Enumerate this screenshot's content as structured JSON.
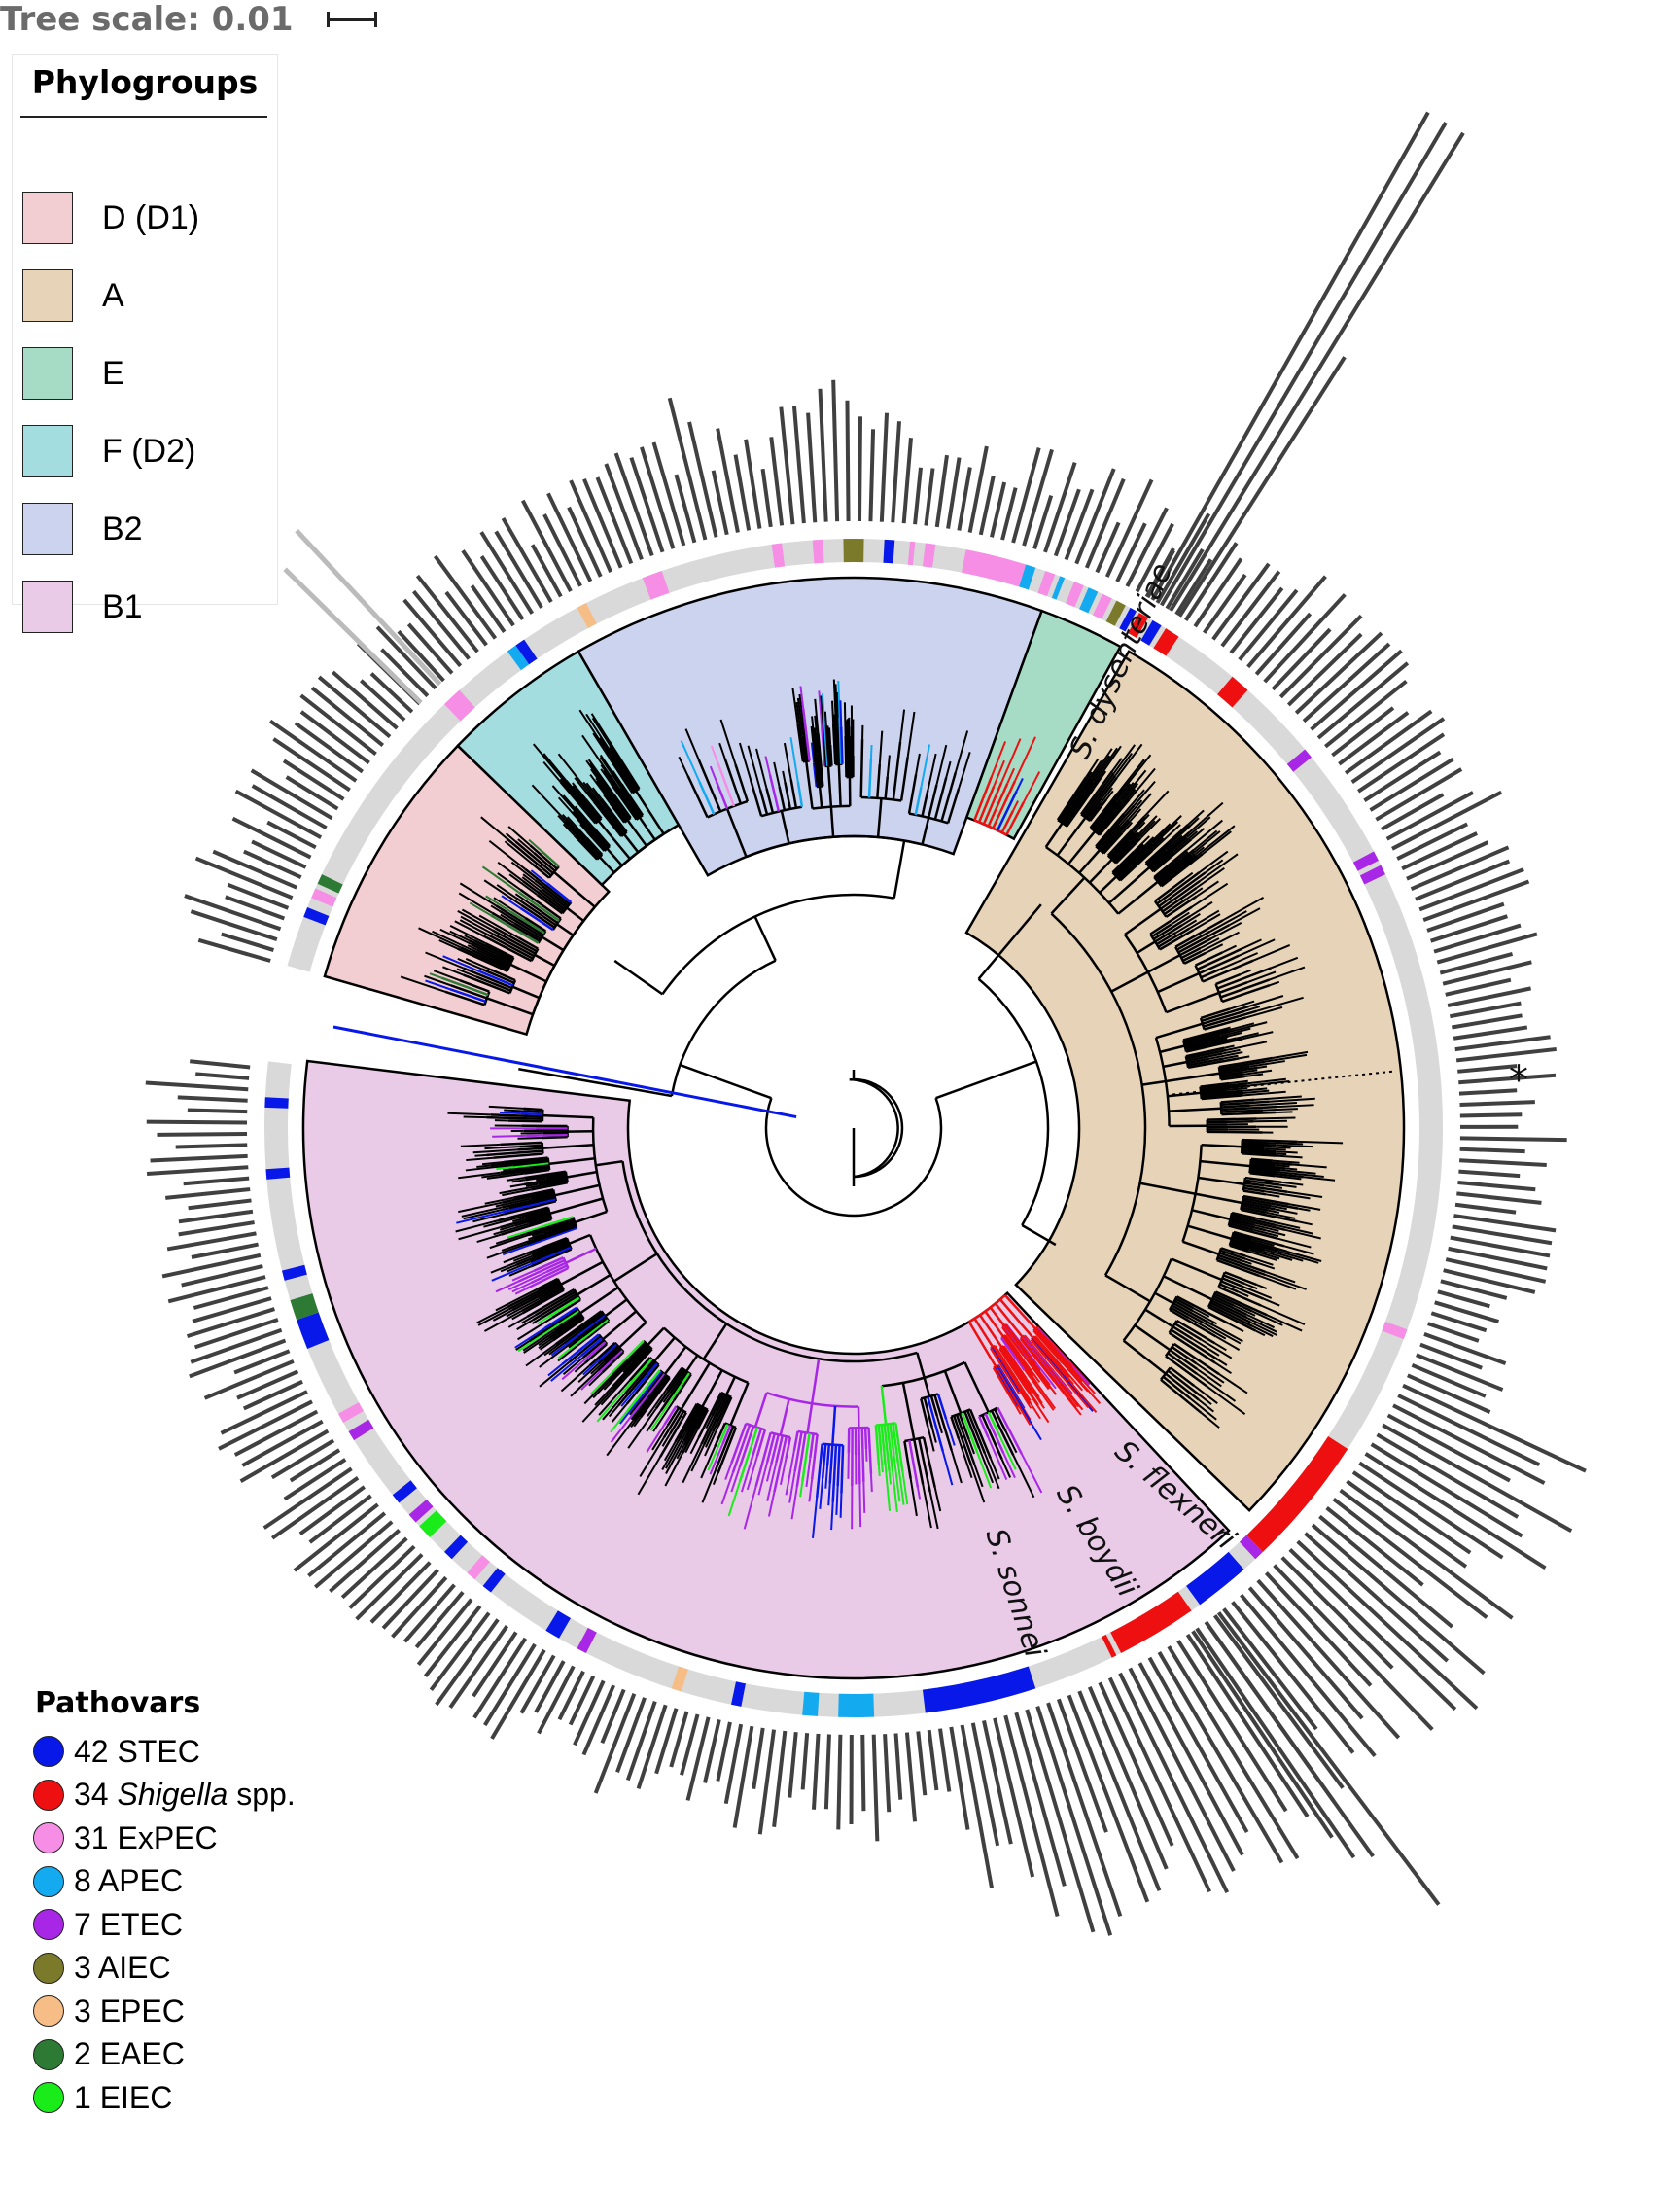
{
  "tree_scale": {
    "label": "Tree scale: 0.01"
  },
  "phylogroups_legend": {
    "title": "Phylogroups",
    "items": [
      {
        "label": "D (D1)",
        "color": "#f2cdd2"
      },
      {
        "label": "A",
        "color": "#e7d4b8"
      },
      {
        "label": "E",
        "color": "#a6dcc6"
      },
      {
        "label": "F (D2)",
        "color": "#a4dde0"
      },
      {
        "label": "B2",
        "color": "#ccd3ee"
      },
      {
        "label": "B1",
        "color": "#e9cbe8"
      }
    ]
  },
  "pathovars_legend": {
    "title": "Pathovars",
    "items": [
      {
        "count": "42",
        "name": "STEC",
        "italic_part": "",
        "color": "#0818e8"
      },
      {
        "count": "34",
        "name": "spp.",
        "italic_part": "Shigella",
        "color": "#ee1010"
      },
      {
        "count": "31",
        "name": "ExPEC",
        "italic_part": "",
        "color": "#f58ee4"
      },
      {
        "count": "8",
        "name": "APEC",
        "italic_part": "",
        "color": "#14aaf0"
      },
      {
        "count": "7",
        "name": "ETEC",
        "italic_part": "",
        "color": "#a827e6"
      },
      {
        "count": "3",
        "name": "AIEC",
        "italic_part": "",
        "color": "#7b7a2a"
      },
      {
        "count": "3",
        "name": "EPEC",
        "italic_part": "",
        "color": "#f7bd86"
      },
      {
        "count": "2",
        "name": "EAEC",
        "italic_part": "",
        "color": "#2d7a34"
      },
      {
        "count": "1",
        "name": "EIEC",
        "italic_part": "",
        "color": "#1aec1a"
      }
    ]
  },
  "clade_labels": {
    "s_dysenteriae": "S. dysenteriae",
    "s_flexneri": "S. flexneri",
    "s_boydii": "S. boydii",
    "s_sonnei": "S. sonnei"
  },
  "asterisk": "*",
  "colors": {
    "ring_background": "#d9d9d9",
    "bar_color": "#404040",
    "branch_default": "#000000"
  }
}
